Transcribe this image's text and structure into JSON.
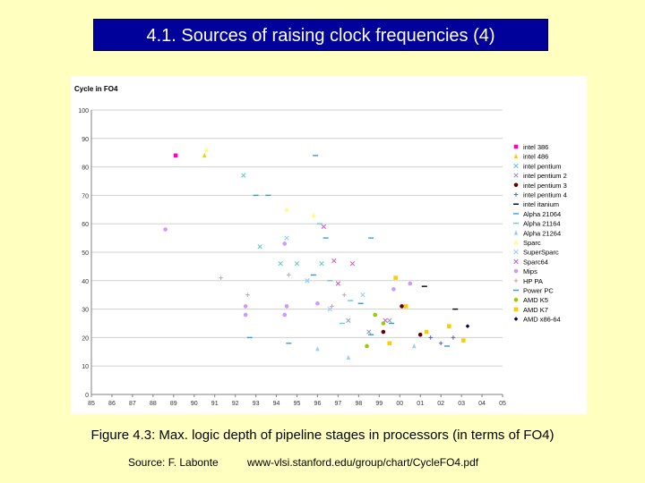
{
  "header": {
    "title": "4.1. Sources of raising clock frequencies (4)"
  },
  "figure": {
    "caption": "Figure 4.3: Max. logic depth of pipeline stages in processors (in terms of FO4)",
    "source_label": "Source: F. Labonte",
    "source_url": "www-vlsi.stanford.edu/group/chart/CycleFO4.pdf"
  },
  "chart_data": {
    "type": "scatter",
    "title": "",
    "ylabel": "Cycle in FO4",
    "xlabel": "",
    "ylim": [
      0,
      100
    ],
    "yticks": [
      0,
      10,
      20,
      30,
      40,
      50,
      60,
      70,
      80,
      90,
      100
    ],
    "xlim": [
      85,
      105
    ],
    "xticks": [
      "85",
      "86",
      "87",
      "88",
      "89",
      "90",
      "91",
      "92",
      "93",
      "94",
      "95",
      "96",
      "97",
      "98",
      "99",
      "00",
      "01",
      "02",
      "03",
      "04",
      "05"
    ],
    "grid": true,
    "legend_position": "right",
    "series": [
      {
        "name": "intel 386",
        "color": "#ff00cc",
        "marker": "square",
        "points": [
          [
            89.1,
            84
          ]
        ]
      },
      {
        "name": "intel 486",
        "color": "#ffcc00",
        "marker": "triangle",
        "points": [
          [
            90.5,
            84
          ]
        ]
      },
      {
        "name": "intel pentium",
        "color": "#66cccc",
        "marker": "x",
        "points": [
          [
            92.4,
            77
          ],
          [
            93.2,
            52
          ],
          [
            94.2,
            46
          ],
          [
            95.0,
            46
          ],
          [
            96.2,
            46
          ],
          [
            95.5,
            40
          ]
        ]
      },
      {
        "name": "intel pentium 2",
        "color": "#9999cc",
        "marker": "x",
        "points": [
          [
            97.5,
            26
          ],
          [
            98.5,
            22
          ],
          [
            99.5,
            26
          ]
        ]
      },
      {
        "name": "intel pentium 3",
        "color": "#660000",
        "marker": "circle",
        "points": [
          [
            99.2,
            22
          ],
          [
            100.1,
            31
          ],
          [
            101.0,
            21
          ]
        ]
      },
      {
        "name": "intel pentium 4",
        "color": "#6666cc",
        "marker": "plus",
        "points": [
          [
            101.5,
            20
          ],
          [
            102.0,
            18
          ],
          [
            102.6,
            20
          ]
        ]
      },
      {
        "name": "intel itanium",
        "color": "#000000",
        "marker": "dash",
        "points": [
          [
            101.2,
            38
          ],
          [
            102.7,
            30
          ]
        ]
      },
      {
        "name": "Alpha 21064",
        "color": "#3399ff",
        "marker": "dash",
        "points": [
          [
            92.7,
            20
          ],
          [
            94.6,
            18
          ],
          [
            95.9,
            84
          ],
          [
            96.4,
            55
          ],
          [
            98.6,
            55
          ]
        ]
      },
      {
        "name": "Alpha 21164",
        "color": "#66cccc",
        "marker": "dash",
        "points": [
          [
            96.1,
            60
          ],
          [
            96.6,
            40
          ],
          [
            97.2,
            25
          ],
          [
            97.6,
            33
          ]
        ]
      },
      {
        "name": "Alpha 21264",
        "color": "#99ccff",
        "marker": "triangle",
        "points": [
          [
            96.0,
            16
          ],
          [
            97.5,
            13
          ],
          [
            100.7,
            17
          ]
        ]
      },
      {
        "name": "Sparc",
        "color": "#ffff66",
        "marker": "triangle",
        "points": [
          [
            90.6,
            86
          ],
          [
            94.5,
            65
          ],
          [
            95.8,
            63
          ]
        ]
      },
      {
        "name": "SuperSparc",
        "color": "#99ccff",
        "marker": "x",
        "points": [
          [
            94.5,
            55
          ],
          [
            95.5,
            40
          ],
          [
            96.6,
            30
          ],
          [
            98.2,
            35
          ]
        ]
      },
      {
        "name": "Sparc64",
        "color": "#cc66cc",
        "marker": "x",
        "points": [
          [
            96.3,
            59
          ],
          [
            96.8,
            47
          ],
          [
            97.0,
            39
          ],
          [
            97.7,
            46
          ],
          [
            99.3,
            26
          ]
        ]
      },
      {
        "name": "Mips",
        "color": "#cc99ff",
        "marker": "circle",
        "points": [
          [
            88.6,
            58
          ],
          [
            92.5,
            31
          ],
          [
            92.5,
            28
          ],
          [
            94.4,
            53
          ],
          [
            94.5,
            31
          ],
          [
            94.4,
            28
          ],
          [
            96.0,
            32
          ],
          [
            99.7,
            37
          ],
          [
            100.5,
            39
          ]
        ]
      },
      {
        "name": "HP PA",
        "color": "#ccaaaa",
        "marker": "plus",
        "points": [
          [
            91.3,
            41
          ],
          [
            92.6,
            35
          ],
          [
            94.6,
            42
          ],
          [
            96.7,
            31
          ],
          [
            97.3,
            35
          ]
        ]
      },
      {
        "name": "Power PC",
        "color": "#3399cc",
        "marker": "dash",
        "points": [
          [
            93.0,
            70
          ],
          [
            93.6,
            70
          ],
          [
            95.8,
            42
          ],
          [
            98.1,
            32
          ],
          [
            98.6,
            21
          ],
          [
            99.6,
            25
          ],
          [
            102.3,
            17
          ]
        ]
      },
      {
        "name": "AMD K5",
        "color": "#99cc00",
        "marker": "circle",
        "points": [
          [
            98.4,
            17
          ],
          [
            98.8,
            28
          ],
          [
            99.2,
            25
          ]
        ]
      },
      {
        "name": "AMD K7",
        "color": "#ffcc00",
        "marker": "square",
        "points": [
          [
            99.5,
            18
          ],
          [
            99.8,
            41
          ],
          [
            100.3,
            31
          ],
          [
            101.3,
            22
          ],
          [
            102.4,
            24
          ],
          [
            103.1,
            19
          ]
        ]
      },
      {
        "name": "AMD x86-64",
        "color": "#000066",
        "marker": "diamond",
        "points": [
          [
            103.3,
            24
          ]
        ]
      }
    ]
  }
}
